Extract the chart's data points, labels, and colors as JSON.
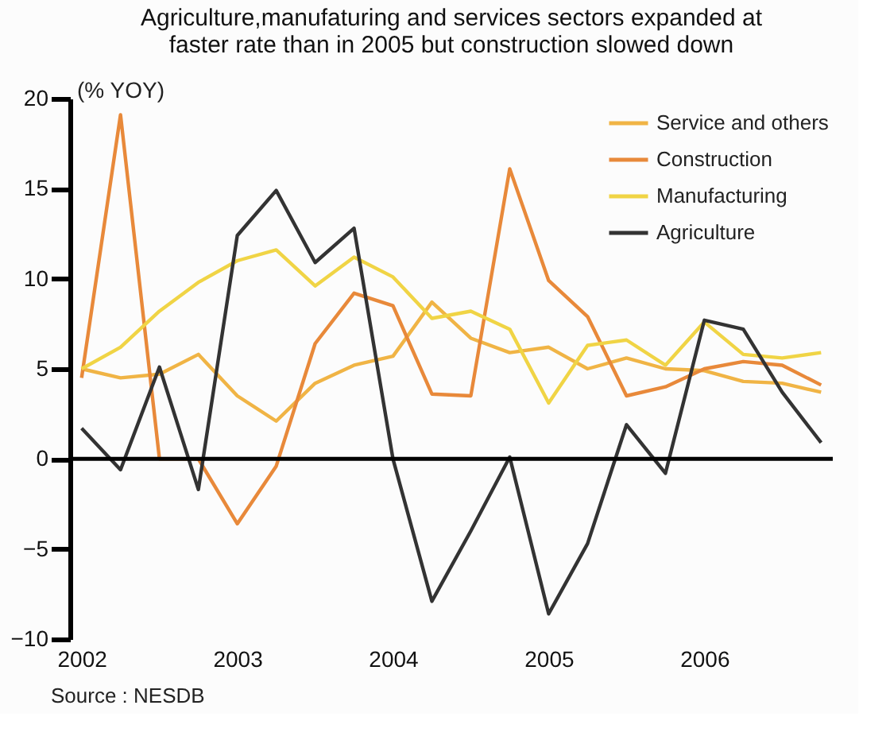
{
  "chart_data": {
    "type": "line",
    "title": [
      "Agriculture,manufaturing and services  sectors expanded at",
      "faster rate than in 2005 but construction slowed down"
    ],
    "ylabel": "(% YOY)",
    "annotations": [
      "Source : NESDB"
    ],
    "categories": [
      "2002",
      null,
      null,
      null,
      "2003",
      null,
      null,
      null,
      "2004",
      null,
      null,
      null,
      "2005",
      null,
      null,
      null,
      "2006",
      null,
      null,
      null
    ],
    "series": [
      {
        "name": "Service and others",
        "color": "#f0b445",
        "values": [
          5.0,
          4.5,
          4.7,
          5.8,
          3.5,
          2.1,
          4.2,
          5.2,
          5.7,
          8.7,
          6.7,
          5.9,
          6.2,
          5.0,
          5.6,
          5.0,
          4.9,
          4.3,
          4.2,
          3.7
        ]
      },
      {
        "name": "Construction",
        "color": "#e8893a",
        "values": [
          4.5,
          19.1,
          0,
          0,
          -3.6,
          -0.4,
          6.4,
          9.2,
          8.5,
          3.6,
          3.5,
          16.1,
          9.9,
          7.9,
          3.5,
          4.0,
          5.0,
          5.4,
          5.2,
          4.1
        ]
      },
      {
        "name": "Manufacturing",
        "color": "#f0d445",
        "values": [
          5.0,
          6.2,
          8.2,
          9.8,
          11.0,
          11.6,
          9.6,
          11.2,
          10.1,
          7.8,
          8.2,
          7.2,
          3.1,
          6.3,
          6.6,
          5.2,
          7.6,
          5.8,
          5.6,
          5.9
        ]
      },
      {
        "name": "Agriculture",
        "color": "#333333",
        "values": [
          1.7,
          -0.6,
          5.1,
          -1.7,
          12.4,
          14.9,
          10.9,
          12.8,
          0.0,
          -7.9,
          -4.0,
          0.1,
          -8.6,
          -4.7,
          1.9,
          -0.8,
          7.7,
          7.2,
          3.7,
          0.9
        ]
      }
    ],
    "ylim": [
      -10,
      20
    ],
    "yticks": [
      -10,
      -5,
      0,
      5,
      10,
      15,
      20
    ],
    "ref_lines": [
      {
        "axis": "y",
        "value": 0,
        "label": null,
        "color": "#000000"
      }
    ],
    "grid": false,
    "legend": "top right",
    "marker": "none",
    "line_style": "solid"
  }
}
